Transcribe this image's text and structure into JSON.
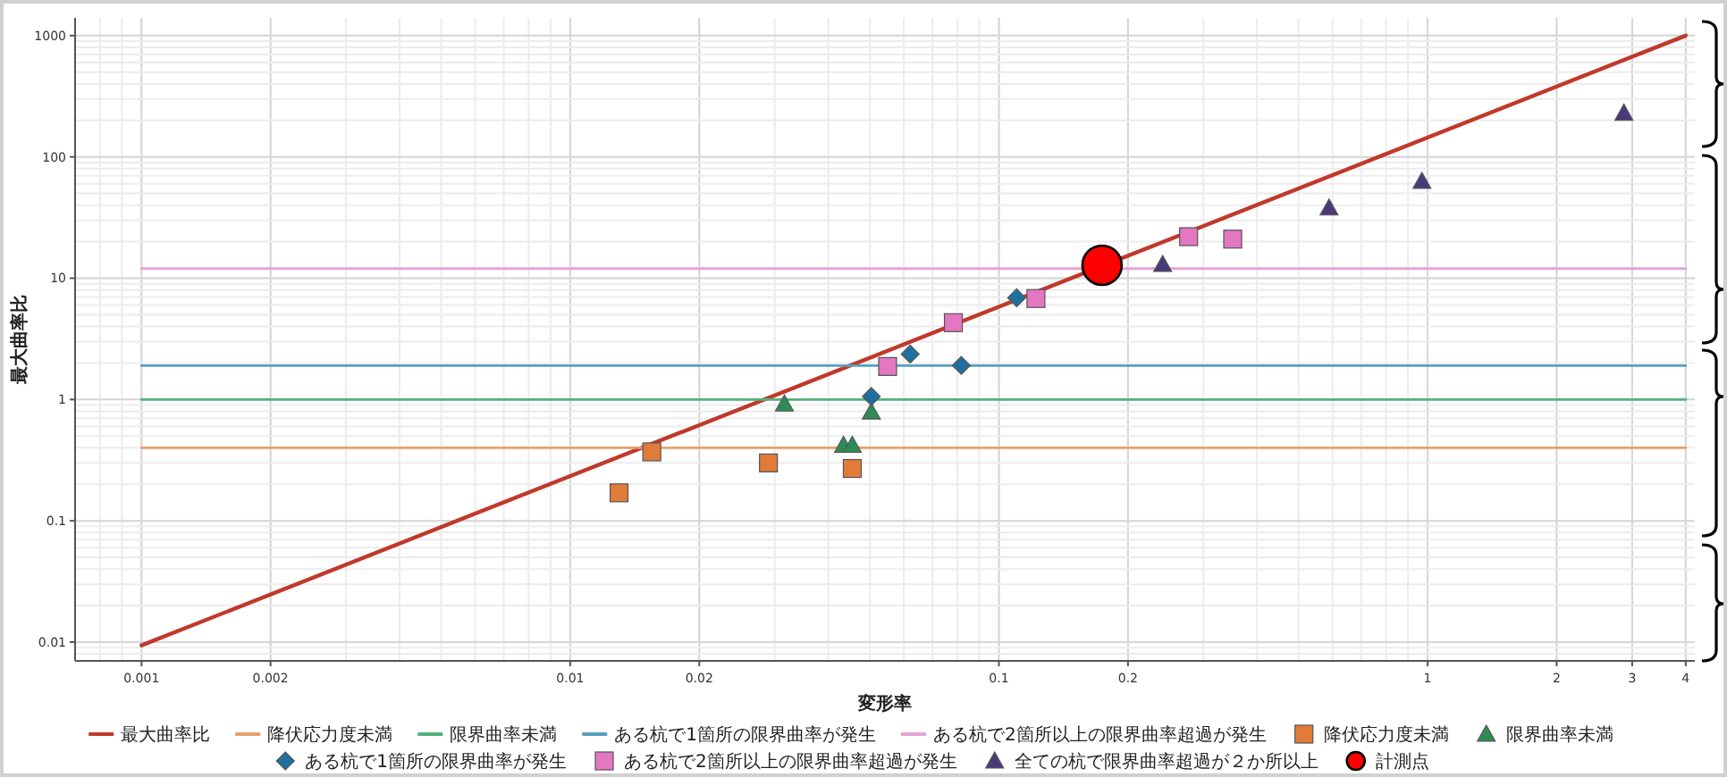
{
  "chart_data": {
    "type": "scatter",
    "xlabel": "変形率",
    "ylabel": "最大曲率比",
    "log": "xy",
    "grid": true,
    "legend": "bottom",
    "xlim": [
      0.0007,
      4.2
    ],
    "ylim": [
      0.007,
      1400
    ],
    "xticks": [
      0.001,
      0.002,
      0.01,
      0.02,
      0.1,
      0.2,
      1,
      2,
      3,
      4
    ],
    "yticks": [
      0.01,
      0.1,
      1,
      10,
      100,
      1000
    ],
    "series": [
      {
        "name": "最大曲率比",
        "type": "line",
        "color": "#c0392b",
        "marker": "none",
        "x": [
          0.001,
          4
        ],
        "values": [
          0.0094,
          1000
        ]
      },
      {
        "name": "降伏応力度未満",
        "type": "line",
        "color": "#e8a06a",
        "marker": "none",
        "x": [
          0.001,
          4
        ],
        "values": [
          0.4,
          0.4
        ]
      },
      {
        "name": "限界曲率未満",
        "type": "line",
        "color": "#52b27a",
        "marker": "none",
        "x": [
          0.001,
          4
        ],
        "values": [
          1,
          1
        ]
      },
      {
        "name": "ある杭で1箇所の限界曲率が発生",
        "type": "line",
        "color": "#5a9fc0",
        "marker": "none",
        "x": [
          0.001,
          4
        ],
        "values": [
          1.9,
          1.9
        ]
      },
      {
        "name": "ある杭で2箇所以上の限界曲率超過が発生",
        "type": "line",
        "color": "#e7a3d6",
        "marker": "none",
        "x": [
          0.001,
          4
        ],
        "values": [
          12,
          12
        ]
      },
      {
        "name": "降伏応力度未満",
        "type": "scatter",
        "color": "#e07b39",
        "marker": "square",
        "x": [
          0.013,
          0.0155,
          0.029,
          0.0455
        ],
        "values": [
          0.17,
          0.37,
          0.3,
          0.27
        ]
      },
      {
        "name": "限界曲率未満",
        "type": "scatter",
        "color": "#2e8b57",
        "marker": "triangle",
        "x": [
          0.0316,
          0.0434,
          0.0455,
          0.0504
        ],
        "values": [
          0.92,
          0.42,
          0.42,
          0.79
        ]
      },
      {
        "name": "ある杭で1箇所の限界曲率が発生",
        "type": "scatter",
        "color": "#1f6f9f",
        "marker": "diamond",
        "x": [
          0.0504,
          0.0621,
          0.0817,
          0.11
        ],
        "values": [
          1.06,
          2.37,
          1.91,
          6.9
        ]
      },
      {
        "name": "ある杭で2箇所以上の限界曲率超過が発生",
        "type": "scatter",
        "color": "#e377c2",
        "marker": "square",
        "x": [
          0.055,
          0.0783,
          0.122,
          0.277,
          0.351
        ],
        "values": [
          1.87,
          4.3,
          6.8,
          22,
          21
        ]
      },
      {
        "name": "全ての杭で限界曲率超過が２か所以上",
        "type": "scatter",
        "color": "#4b3a7a",
        "marker": "triangle",
        "x": [
          0.241,
          0.589,
          0.97,
          2.87
        ],
        "values": [
          13,
          38,
          63,
          230
        ]
      },
      {
        "name": "計測点",
        "type": "scatter",
        "color": "#ff0000",
        "marker": "circle",
        "x": [
          0.174
        ],
        "values": [
          12.8
        ]
      }
    ]
  }
}
